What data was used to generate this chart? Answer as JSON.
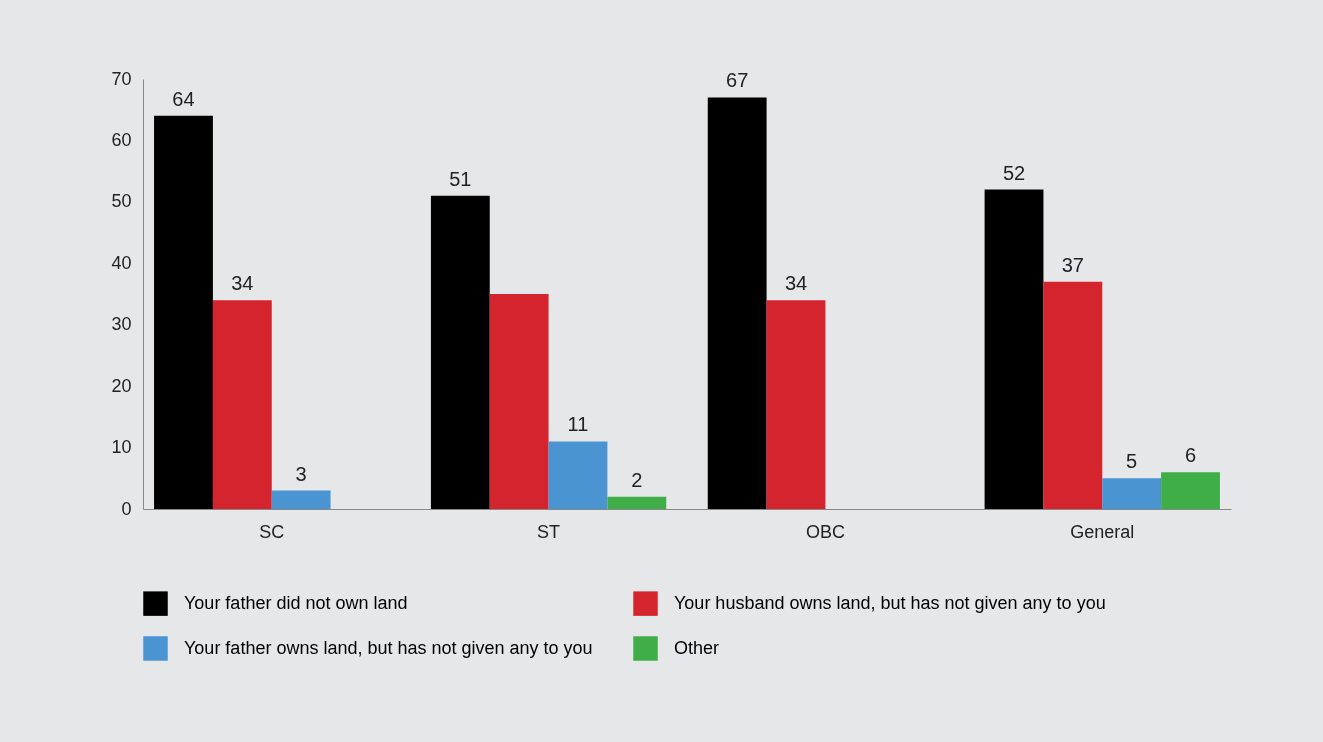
{
  "chart_data": {
    "type": "bar",
    "categories": [
      "SC",
      "ST",
      "OBC",
      "General"
    ],
    "series": [
      {
        "name": "Your father did not own land",
        "color": "#000000",
        "values": [
          64,
          51,
          67,
          52
        ],
        "value_labels": [
          "64",
          "51",
          "67",
          "52"
        ]
      },
      {
        "name": "Your husband owns land, but has not given any to you",
        "color": "#d4252f",
        "values": [
          34,
          35,
          34,
          37
        ],
        "value_labels": [
          "34",
          null,
          "34",
          "37"
        ]
      },
      {
        "name": "Your father owns land, but has not given any to you",
        "color": "#4a94d2",
        "values": [
          3,
          11,
          null,
          5
        ],
        "value_labels": [
          "3",
          "11",
          null,
          "5"
        ]
      },
      {
        "name": "Other",
        "color": "#3fae49",
        "values": [
          null,
          2,
          null,
          6
        ],
        "value_labels": [
          null,
          "2",
          null,
          "6"
        ]
      }
    ],
    "ylim": [
      0,
      70
    ],
    "yticks": [
      0,
      10,
      20,
      30,
      40,
      50,
      60,
      70
    ],
    "grid": false,
    "legend": "bottom"
  }
}
